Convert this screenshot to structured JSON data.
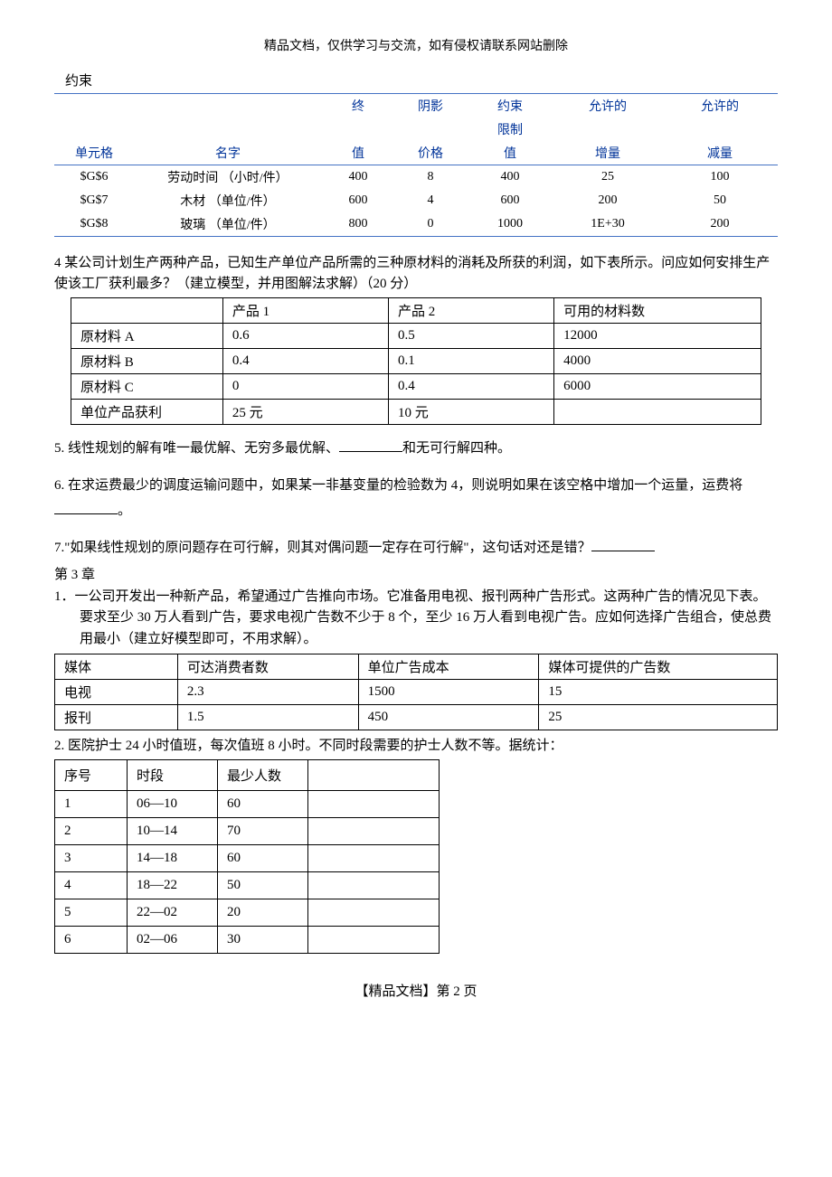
{
  "header": "精品文档，仅供学习与交流，如有侵权请联系网站删除",
  "constraint_title": "约束",
  "ct": {
    "h1": {
      "c1": "",
      "c2": "",
      "c3": "终",
      "c4": "阴影",
      "c5": "约束",
      "c6": "允许的",
      "c7": "允许的"
    },
    "h2": {
      "c1": "",
      "c2": "",
      "c3": "",
      "c4": "",
      "c5": "限制",
      "c6": "",
      "c7": ""
    },
    "h3": {
      "c1": "单元格",
      "c2": "名字",
      "c3": "值",
      "c4": "价格",
      "c5": "值",
      "c6": "增量",
      "c7": "减量"
    },
    "r": [
      {
        "c1": "$G$6",
        "c2": "劳动时间 （小时/件）",
        "c3": "400",
        "c4": "8",
        "c5": "400",
        "c6": "25",
        "c7": "100"
      },
      {
        "c1": "$G$7",
        "c2": "木材   （单位/件）",
        "c3": "600",
        "c4": "4",
        "c5": "600",
        "c6": "200",
        "c7": "50"
      },
      {
        "c1": "$G$8",
        "c2": "玻璃   （单位/件）",
        "c3": "800",
        "c4": "0",
        "c5": "1000",
        "c6": "1E+30",
        "c7": "200"
      }
    ]
  },
  "q4_text": "4 某公司计划生产两种产品，已知生产单位产品所需的三种原材料的消耗及所获的利润，如下表所示。问应如何安排生产使该工厂获利最多？（建立模型，并用图解法求解）（20 分）",
  "t4": {
    "h": {
      "c1": " ",
      "c2": "产品 1",
      "c3": "产品 2",
      "c4": "可用的材料数"
    },
    "r": [
      {
        "c1": "原材料 A",
        "c2": "0.6",
        "c3": "0.5",
        "c4": "12000"
      },
      {
        "c1": "原材料 B",
        "c2": "0.4",
        "c3": "0.1",
        "c4": "4000"
      },
      {
        "c1": "原材料 C",
        "c2": "0",
        "c3": "0.4",
        "c4": "6000"
      },
      {
        "c1": "单位产品获利",
        "c2": "25 元",
        "c3": "10 元",
        "c4": " "
      }
    ]
  },
  "q5a": "5. 线性规划的解有唯一最优解、无穷多最优解、",
  "q5b": "和无可行解四种。",
  "q6a": "6. 在求运费最少的调度运输问题中，如果某一非基变量的检验数为 4，则说明如果在该空格中增加一个运量，运费将",
  "q6b": "。",
  "q7a": "7.\"如果线性规划的原问题存在可行解，则其对偶问题一定存在可行解\"，这句话对还是错？",
  "ch3": "第 3 章",
  "ch3_q1": "1．一公司开发出一种新产品，希望通过广告推向市场。它准备用电视、报刊两种广告形式。这两种广告的情况见下表。要求至少 30 万人看到广告，要求电视广告数不少于 8 个，至少 16 万人看到电视广告。应如何选择广告组合，使总费用最小（建立好模型即可，不用求解）。",
  "t_media": {
    "h": {
      "c1": "媒体",
      "c2": "可达消费者数",
      "c3": "单位广告成本",
      "c4": "媒体可提供的广告数"
    },
    "r": [
      {
        "c1": "电视",
        "c2": "2.3",
        "c3": "1500",
        "c4": "15"
      },
      {
        "c1": "报刊",
        "c2": "1.5",
        "c3": "450",
        "c4": "25"
      }
    ]
  },
  "ch3_q2": "2. 医院护士 24 小时值班，每次值班 8 小时。不同时段需要的护士人数不等。据统计：",
  "t_nurse": {
    "h": {
      "c1": "序号",
      "c2": "时段",
      "c3": "最少人数",
      "c4": " "
    },
    "r": [
      {
        "c1": "1",
        "c2": "06—10",
        "c3": "60",
        "c4": " "
      },
      {
        "c1": "2",
        "c2": "10—14",
        "c3": "70",
        "c4": " "
      },
      {
        "c1": "3",
        "c2": "14—18",
        "c3": "60",
        "c4": " "
      },
      {
        "c1": "4",
        "c2": "18—22",
        "c3": "50",
        "c4": " "
      },
      {
        "c1": "5",
        "c2": "22—02",
        "c3": "20",
        "c4": " "
      },
      {
        "c1": "6",
        "c2": "02—06",
        "c3": "30",
        "c4": " "
      }
    ]
  },
  "footer": "【精品文档】第 2 页",
  "col_widths": {
    "ct": [
      "11%",
      "26%",
      "10%",
      "10%",
      "12%",
      "15%",
      "16%"
    ],
    "t4": [
      "22%",
      "24%",
      "24%",
      "30%"
    ],
    "media": [
      "17%",
      "25%",
      "25%",
      "33%"
    ],
    "nurse": [
      "80px",
      "100px",
      "100px",
      "145px"
    ]
  }
}
